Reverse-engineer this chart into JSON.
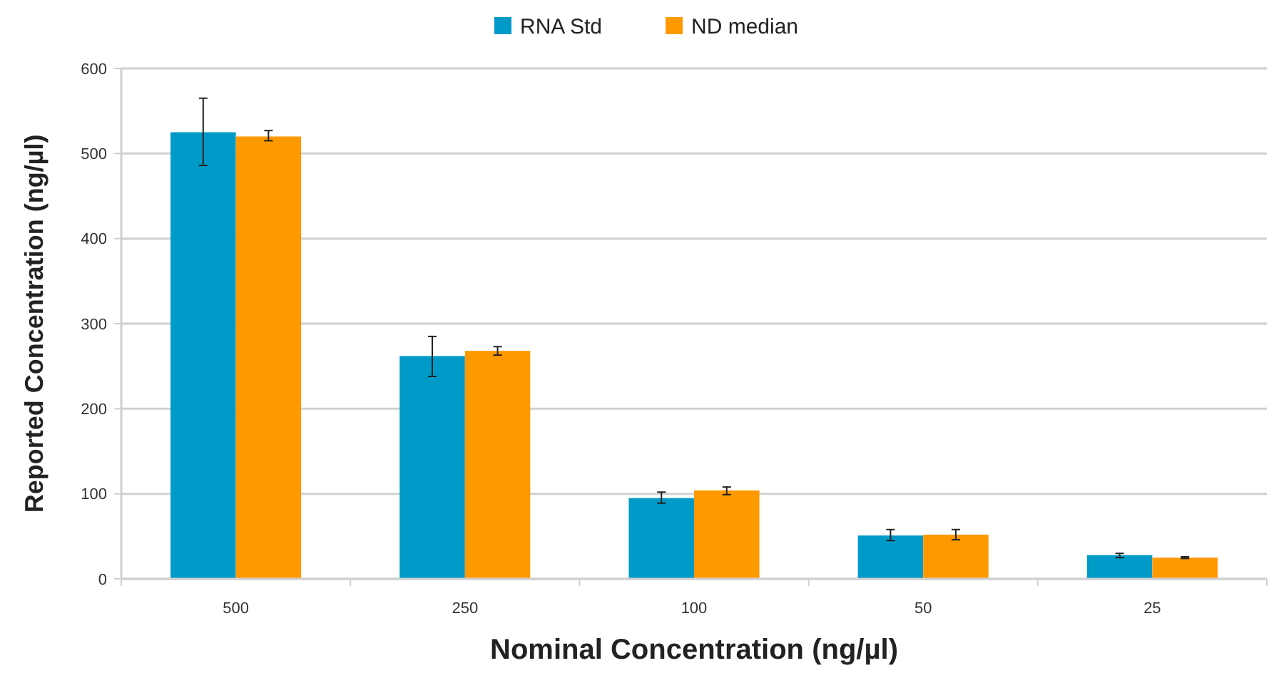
{
  "chart_data": {
    "type": "bar",
    "xlabel": "Nominal Concentration (ng/µl)",
    "ylabel": "Reported Concentration (ng/µl)",
    "categories": [
      "500",
      "250",
      "100",
      "50",
      "25"
    ],
    "series": [
      {
        "name": "RNA Std",
        "color": "#009ac9",
        "values": [
          525,
          262,
          95,
          51,
          28
        ],
        "errors": [
          [
            486,
            565
          ],
          [
            238,
            285
          ],
          [
            89,
            102
          ],
          [
            45,
            58
          ],
          [
            25,
            30
          ]
        ]
      },
      {
        "name": "ND median",
        "color": "#ff9900",
        "values": [
          520,
          268,
          104,
          52,
          25
        ],
        "errors": [
          [
            515,
            527
          ],
          [
            263,
            273
          ],
          [
            99,
            108
          ],
          [
            46,
            58
          ],
          [
            24,
            26
          ]
        ]
      }
    ],
    "ylim": [
      0,
      600
    ],
    "yticks": [
      0,
      100,
      200,
      300,
      400,
      500,
      600
    ],
    "grid": "y",
    "legend": "top"
  }
}
